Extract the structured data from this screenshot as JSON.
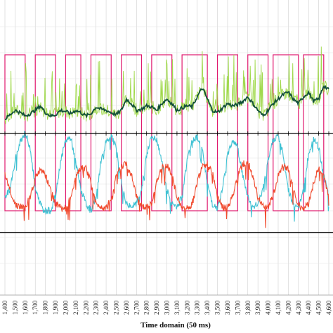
{
  "chart_data": {
    "type": "line",
    "xlabel": "Time domain (50 ms)",
    "x_ticks": [
      "1,400",
      "1,500",
      "1,600",
      "1,700",
      "1,800",
      "1,900",
      "2,000",
      "2,100",
      "2,200",
      "2,300",
      "2,400",
      "2,500",
      "2,600",
      "2,700",
      "2,800",
      "2,900",
      "3,000",
      "3,100",
      "3,200",
      "3,300",
      "3,400",
      "3,500",
      "3,600",
      "3,700",
      "3,800",
      "3,900",
      "4,000",
      "4,100",
      "4,200",
      "4,300",
      "4,400",
      "4,500",
      "4,600"
    ],
    "xlim": [
      1400,
      4600
    ],
    "grid": true,
    "legend": "none",
    "colors": {
      "pulse": "#e0196e",
      "green_raw": "#9fd84a",
      "green_smooth": "#12503a",
      "cyan": "#3ec1d3",
      "red": "#f04a2e",
      "grid": "#cfcfcf",
      "axis": "#000000"
    },
    "pulse_periods": [
      [
        1400,
        1600
      ],
      [
        1700,
        1900
      ],
      [
        2000,
        2150
      ],
      [
        2250,
        2450
      ],
      [
        2550,
        2750
      ],
      [
        2850,
        3050
      ],
      [
        3150,
        3400
      ],
      [
        3500,
        3700
      ],
      [
        3800,
        4000
      ],
      [
        4050,
        4300
      ],
      [
        4350,
        4550
      ]
    ],
    "green_smooth_points": [
      [
        1400,
        0.22
      ],
      [
        1450,
        0.26
      ],
      [
        1500,
        0.3
      ],
      [
        1550,
        0.28
      ],
      [
        1600,
        0.25
      ],
      [
        1650,
        0.27
      ],
      [
        1700,
        0.3
      ],
      [
        1750,
        0.34
      ],
      [
        1800,
        0.28
      ],
      [
        1850,
        0.25
      ],
      [
        1900,
        0.26
      ],
      [
        1950,
        0.3
      ],
      [
        2000,
        0.29
      ],
      [
        2050,
        0.27
      ],
      [
        2100,
        0.3
      ],
      [
        2150,
        0.28
      ],
      [
        2200,
        0.25
      ],
      [
        2250,
        0.27
      ],
      [
        2300,
        0.33
      ],
      [
        2350,
        0.31
      ],
      [
        2400,
        0.3
      ],
      [
        2450,
        0.28
      ],
      [
        2500,
        0.26
      ],
      [
        2550,
        0.3
      ],
      [
        2600,
        0.4
      ],
      [
        2650,
        0.36
      ],
      [
        2700,
        0.3
      ],
      [
        2750,
        0.31
      ],
      [
        2800,
        0.34
      ],
      [
        2850,
        0.33
      ],
      [
        2900,
        0.3
      ],
      [
        2950,
        0.36
      ],
      [
        3000,
        0.4
      ],
      [
        3050,
        0.36
      ],
      [
        3100,
        0.3
      ],
      [
        3150,
        0.32
      ],
      [
        3200,
        0.34
      ],
      [
        3250,
        0.33
      ],
      [
        3300,
        0.42
      ],
      [
        3350,
        0.5
      ],
      [
        3400,
        0.4
      ],
      [
        3450,
        0.3
      ],
      [
        3500,
        0.28
      ],
      [
        3550,
        0.32
      ],
      [
        3600,
        0.36
      ],
      [
        3650,
        0.34
      ],
      [
        3700,
        0.35
      ],
      [
        3750,
        0.38
      ],
      [
        3800,
        0.42
      ],
      [
        3850,
        0.36
      ],
      [
        3900,
        0.3
      ],
      [
        3950,
        0.25
      ],
      [
        4000,
        0.3
      ],
      [
        4050,
        0.36
      ],
      [
        4100,
        0.4
      ],
      [
        4150,
        0.44
      ],
      [
        4200,
        0.46
      ],
      [
        4250,
        0.4
      ],
      [
        4300,
        0.36
      ],
      [
        4350,
        0.42
      ],
      [
        4400,
        0.46
      ],
      [
        4450,
        0.38
      ],
      [
        4500,
        0.4
      ],
      [
        4550,
        0.52
      ],
      [
        4600,
        0.48
      ]
    ],
    "cyan_points": [
      [
        1400,
        0.05
      ],
      [
        1450,
        0.1
      ],
      [
        1500,
        0.3
      ],
      [
        1550,
        0.45
      ],
      [
        1600,
        0.5
      ],
      [
        1650,
        0.4
      ],
      [
        1700,
        0.1
      ],
      [
        1750,
        0.0
      ],
      [
        1800,
        -0.05
      ],
      [
        1850,
        -0.05
      ],
      [
        1900,
        0.05
      ],
      [
        1950,
        0.3
      ],
      [
        2000,
        0.45
      ],
      [
        2050,
        0.47
      ],
      [
        2100,
        0.3
      ],
      [
        2150,
        0.1
      ],
      [
        2200,
        0.0
      ],
      [
        2250,
        -0.05
      ],
      [
        2300,
        0.05
      ],
      [
        2350,
        0.3
      ],
      [
        2400,
        0.45
      ],
      [
        2450,
        0.48
      ],
      [
        2500,
        0.4
      ],
      [
        2550,
        0.15
      ],
      [
        2600,
        0.0
      ],
      [
        2650,
        -0.02
      ],
      [
        2700,
        0.0
      ],
      [
        2750,
        0.1
      ],
      [
        2800,
        0.35
      ],
      [
        2850,
        0.48
      ],
      [
        2900,
        0.45
      ],
      [
        2950,
        0.3
      ],
      [
        3000,
        0.1
      ],
      [
        3050,
        0.0
      ],
      [
        3100,
        -0.02
      ],
      [
        3150,
        0.05
      ],
      [
        3200,
        0.3
      ],
      [
        3250,
        0.45
      ],
      [
        3300,
        0.48
      ],
      [
        3350,
        0.4
      ],
      [
        3400,
        0.15
      ],
      [
        3450,
        0.0
      ],
      [
        3500,
        -0.03
      ],
      [
        3550,
        0.1
      ],
      [
        3600,
        0.35
      ],
      [
        3650,
        0.46
      ],
      [
        3700,
        0.4
      ],
      [
        3750,
        0.2
      ],
      [
        3800,
        0.05
      ],
      [
        3850,
        -0.03
      ],
      [
        3900,
        0.0
      ],
      [
        3950,
        0.1
      ],
      [
        4000,
        0.3
      ],
      [
        4050,
        0.46
      ],
      [
        4100,
        0.48
      ],
      [
        4150,
        0.35
      ],
      [
        4200,
        0.1
      ],
      [
        4250,
        0.0
      ],
      [
        4300,
        -0.02
      ],
      [
        4350,
        0.1
      ],
      [
        4400,
        0.35
      ],
      [
        4450,
        0.46
      ],
      [
        4500,
        0.4
      ],
      [
        4550,
        0.2
      ],
      [
        4600,
        0.05
      ]
    ],
    "red_points": [
      [
        1400,
        0.2
      ],
      [
        1450,
        0.1
      ],
      [
        1500,
        0.0
      ],
      [
        1550,
        -0.02
      ],
      [
        1600,
        -0.03
      ],
      [
        1650,
        0.05
      ],
      [
        1700,
        0.18
      ],
      [
        1750,
        0.25
      ],
      [
        1800,
        0.2
      ],
      [
        1850,
        0.1
      ],
      [
        1900,
        0.0
      ],
      [
        1950,
        -0.02
      ],
      [
        2000,
        -0.03
      ],
      [
        2050,
        0.05
      ],
      [
        2100,
        0.18
      ],
      [
        2150,
        0.26
      ],
      [
        2200,
        0.25
      ],
      [
        2250,
        0.15
      ],
      [
        2300,
        0.0
      ],
      [
        2350,
        -0.02
      ],
      [
        2400,
        -0.03
      ],
      [
        2450,
        0.05
      ],
      [
        2500,
        0.2
      ],
      [
        2550,
        0.27
      ],
      [
        2600,
        0.28
      ],
      [
        2650,
        0.2
      ],
      [
        2700,
        0.05
      ],
      [
        2750,
        -0.02
      ],
      [
        2800,
        -0.03
      ],
      [
        2850,
        0.0
      ],
      [
        2900,
        0.15
      ],
      [
        2950,
        0.26
      ],
      [
        3000,
        0.28
      ],
      [
        3050,
        0.2
      ],
      [
        3100,
        0.05
      ],
      [
        3150,
        -0.02
      ],
      [
        3200,
        -0.03
      ],
      [
        3250,
        0.0
      ],
      [
        3300,
        0.15
      ],
      [
        3350,
        0.26
      ],
      [
        3400,
        0.28
      ],
      [
        3450,
        0.22
      ],
      [
        3500,
        0.05
      ],
      [
        3550,
        -0.02
      ],
      [
        3600,
        -0.03
      ],
      [
        3650,
        0.05
      ],
      [
        3700,
        0.2
      ],
      [
        3750,
        0.28
      ],
      [
        3800,
        0.3
      ],
      [
        3850,
        0.2
      ],
      [
        3900,
        0.05
      ],
      [
        3950,
        -0.02
      ],
      [
        4000,
        -0.02
      ],
      [
        4050,
        0.05
      ],
      [
        4100,
        0.2
      ],
      [
        4150,
        0.28
      ],
      [
        4200,
        0.25
      ],
      [
        4250,
        0.1
      ],
      [
        4300,
        -0.01
      ],
      [
        4350,
        -0.03
      ],
      [
        4400,
        0.0
      ],
      [
        4450,
        0.15
      ],
      [
        4500,
        0.25
      ],
      [
        4550,
        0.2
      ],
      [
        4600,
        0.05
      ]
    ]
  }
}
